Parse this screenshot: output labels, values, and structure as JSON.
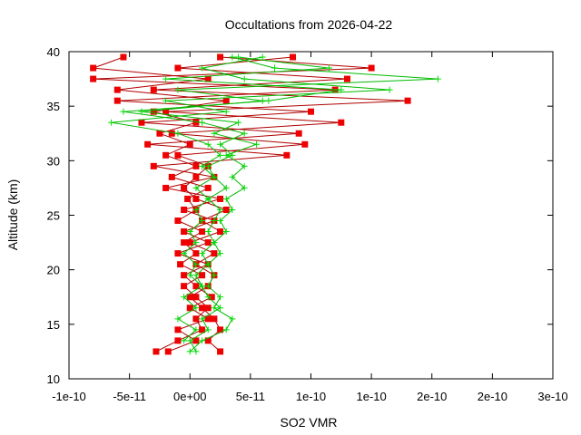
{
  "chart_data": {
    "type": "line",
    "title": "Occultations from 2026-04-22",
    "xlabel": "SO2 VMR",
    "ylabel": "Altitude (km)",
    "xlim": [
      -1e-10,
      3e-10
    ],
    "ylim": [
      10,
      40
    ],
    "xticks": [
      -1e-10,
      -5e-11,
      0,
      5e-11,
      1e-10,
      1.5e-10,
      2e-10,
      2.5e-10,
      3e-10
    ],
    "xtick_labels": [
      "-1e-10",
      "-5e-11",
      "0e+00",
      "5e-11",
      "1e-10",
      "1e-10",
      "2e-10",
      "2e-10",
      "3e-10"
    ],
    "yticks": [
      10,
      15,
      20,
      25,
      30,
      35,
      40
    ],
    "ytick_labels": [
      "10",
      "15",
      "20",
      "25",
      "30",
      "35",
      "40"
    ],
    "grid": false,
    "series": [
      {
        "marker": "square",
        "color": "#b00000",
        "marker_color": "#ee0000",
        "points": [
          [
            -2.8e-11,
            12.5
          ],
          [
            -1e-11,
            13.5
          ],
          [
            1e-11,
            14.5
          ],
          [
            5e-12,
            15.5
          ],
          [
            1.5e-11,
            16.5
          ],
          [
            5e-12,
            17.5
          ],
          [
            -5e-12,
            18.5
          ],
          [
            1e-11,
            19.5
          ],
          [
            -8e-12,
            20.5
          ],
          [
            5e-12,
            21.5
          ],
          [
            -5e-12,
            22.5
          ],
          [
            1e-11,
            23.5
          ],
          [
            -1e-11,
            24.5
          ],
          [
            5e-12,
            25.5
          ],
          [
            -2e-12,
            26.5
          ],
          [
            1.5e-11,
            27.5
          ],
          [
            -1.5e-11,
            28.5
          ],
          [
            5e-12,
            29.5
          ],
          [
            -2e-11,
            30.5
          ],
          [
            0.0,
            31.5
          ],
          [
            -2.5e-11,
            32.5
          ],
          [
            5e-12,
            33.5
          ],
          [
            -3e-11,
            34.5
          ],
          [
            3e-11,
            35.5
          ],
          [
            -6e-11,
            36.5
          ],
          [
            1.5e-11,
            37.5
          ],
          [
            -8e-11,
            38.5
          ],
          [
            -5.5e-11,
            39.5
          ]
        ]
      },
      {
        "marker": "square",
        "color": "#b00000",
        "marker_color": "#ee0000",
        "points": [
          [
            -1.8e-11,
            12.5
          ],
          [
            5e-12,
            13.5
          ],
          [
            -1e-11,
            14.5
          ],
          [
            1.5e-11,
            15.5
          ],
          [
            0.0,
            16.5
          ],
          [
            1.8e-11,
            17.5
          ],
          [
            5e-12,
            18.5
          ],
          [
            -5e-12,
            19.5
          ],
          [
            1.5e-11,
            20.5
          ],
          [
            -1e-11,
            21.5
          ],
          [
            1.5e-11,
            22.5
          ],
          [
            -5e-12,
            23.5
          ],
          [
            2e-11,
            24.5
          ],
          [
            -5e-12,
            25.5
          ],
          [
            2.5e-11,
            26.5
          ],
          [
            -2e-11,
            27.5
          ],
          [
            2e-11,
            28.5
          ],
          [
            -3e-11,
            29.5
          ],
          [
            8e-11,
            30.5
          ],
          [
            -3.5e-11,
            31.5
          ],
          [
            9e-11,
            32.5
          ],
          [
            -4e-11,
            33.5
          ],
          [
            1e-10,
            34.5
          ],
          [
            -6e-11,
            35.5
          ],
          [
            1.2e-10,
            36.5
          ],
          [
            -8e-11,
            37.5
          ],
          [
            1.5e-10,
            38.5
          ],
          [
            2.5e-11,
            39.5
          ]
        ]
      },
      {
        "marker": "square",
        "color": "#b00000",
        "marker_color": "#ee0000",
        "points": [
          [
            2.5e-11,
            12.5
          ],
          [
            1.5e-11,
            13.5
          ],
          [
            2.5e-11,
            14.5
          ],
          [
            2e-11,
            15.5
          ],
          [
            1e-11,
            16.5
          ],
          [
            0.0,
            17.5
          ],
          [
            1.5e-11,
            18.5
          ],
          [
            2e-11,
            19.5
          ],
          [
            5e-12,
            20.5
          ],
          [
            2e-11,
            21.5
          ],
          [
            0.0,
            22.5
          ],
          [
            2.5e-11,
            23.5
          ],
          [
            1e-11,
            24.5
          ],
          [
            3e-11,
            25.5
          ],
          [
            5e-12,
            26.5
          ],
          [
            -5e-12,
            27.5
          ],
          [
            5e-12,
            28.5
          ],
          [
            1.5e-11,
            29.5
          ],
          [
            -1e-11,
            30.5
          ],
          [
            9.5e-11,
            31.5
          ],
          [
            -1.5e-11,
            32.5
          ],
          [
            1.25e-10,
            33.5
          ],
          [
            -2e-11,
            34.5
          ],
          [
            1.8e-10,
            35.5
          ],
          [
            -3e-11,
            36.5
          ],
          [
            1.3e-10,
            37.5
          ],
          [
            -1e-11,
            38.5
          ],
          [
            8.5e-11,
            39.5
          ]
        ]
      },
      {
        "marker": "cross",
        "color": "#00bb00",
        "marker_color": "#00dd00",
        "points": [
          [
            0.0,
            12.5
          ],
          [
            1e-11,
            13.5
          ],
          [
            3e-11,
            14.5
          ],
          [
            3.5e-11,
            15.5
          ],
          [
            2e-11,
            16.5
          ],
          [
            2.5e-11,
            17.5
          ],
          [
            1.5e-11,
            18.5
          ],
          [
            2e-11,
            19.5
          ],
          [
            1.5e-11,
            20.5
          ],
          [
            2.5e-11,
            21.5
          ],
          [
            2e-11,
            22.5
          ],
          [
            3e-11,
            23.5
          ],
          [
            2.5e-11,
            24.5
          ],
          [
            3.5e-11,
            25.5
          ],
          [
            3e-11,
            26.5
          ],
          [
            4.5e-11,
            27.5
          ],
          [
            3.5e-11,
            28.5
          ],
          [
            4.5e-11,
            29.5
          ],
          [
            3e-11,
            30.5
          ],
          [
            5.5e-11,
            31.5
          ],
          [
            2e-11,
            32.5
          ],
          [
            4e-11,
            33.5
          ],
          [
            -4e-11,
            34.5
          ],
          [
            6e-11,
            35.5
          ],
          [
            -1e-11,
            36.5
          ],
          [
            2.05e-10,
            37.5
          ],
          [
            7e-11,
            38.5
          ],
          [
            3.5e-11,
            39.5
          ]
        ]
      },
      {
        "marker": "cross",
        "color": "#00bb00",
        "marker_color": "#00dd00",
        "points": [
          [
            5e-12,
            12.5
          ],
          [
            0.0,
            13.5
          ],
          [
            1.5e-11,
            14.5
          ],
          [
            1e-11,
            15.5
          ],
          [
            2.5e-11,
            16.5
          ],
          [
            1.5e-11,
            17.5
          ],
          [
            1e-11,
            18.5
          ],
          [
            5e-12,
            19.5
          ],
          [
            1.5e-11,
            20.5
          ],
          [
            1e-11,
            21.5
          ],
          [
            2e-11,
            22.5
          ],
          [
            1.5e-11,
            23.5
          ],
          [
            2e-11,
            24.5
          ],
          [
            2.5e-11,
            25.5
          ],
          [
            1.5e-11,
            26.5
          ],
          [
            3e-11,
            27.5
          ],
          [
            2e-11,
            28.5
          ],
          [
            1e-11,
            29.5
          ],
          [
            2.5e-11,
            30.5
          ],
          [
            1.5e-11,
            31.5
          ],
          [
            -1e-11,
            32.5
          ],
          [
            -6.5e-11,
            33.5
          ],
          [
            3e-11,
            34.5
          ],
          [
            -2e-11,
            35.5
          ],
          [
            1.65e-10,
            36.5
          ],
          [
            4.5e-11,
            37.5
          ],
          [
            1e-11,
            38.5
          ],
          [
            6e-11,
            39.5
          ]
        ]
      },
      {
        "marker": "cross",
        "color": "#00bb00",
        "marker_color": "#00dd00",
        "points": [
          [
            -5e-12,
            13.5
          ],
          [
            5e-12,
            14.5
          ],
          [
            -1e-11,
            15.5
          ],
          [
            5e-12,
            16.5
          ],
          [
            -5e-12,
            17.5
          ],
          [
            1e-11,
            18.5
          ],
          [
            0.0,
            19.5
          ],
          [
            5e-12,
            20.5
          ],
          [
            -5e-12,
            21.5
          ],
          [
            5e-12,
            22.5
          ],
          [
            0.0,
            23.5
          ],
          [
            1e-11,
            24.5
          ],
          [
            5e-12,
            25.5
          ],
          [
            1.5e-11,
            26.5
          ],
          [
            5e-12,
            27.5
          ],
          [
            2e-11,
            28.5
          ],
          [
            1.5e-11,
            29.5
          ],
          [
            3.5e-11,
            30.5
          ],
          [
            2.5e-11,
            31.5
          ],
          [
            4.5e-11,
            32.5
          ],
          [
            1e-11,
            33.5
          ],
          [
            -5.5e-11,
            34.5
          ],
          [
            6.5e-11,
            35.5
          ],
          [
            1.25e-10,
            36.5
          ],
          [
            -2e-11,
            37.5
          ],
          [
            1.15e-10,
            38.5
          ],
          [
            4e-11,
            39.5
          ]
        ]
      }
    ]
  }
}
